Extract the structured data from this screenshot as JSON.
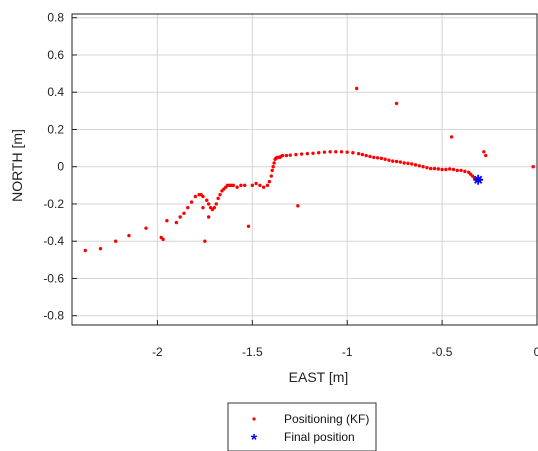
{
  "chart_data": {
    "type": "scatter",
    "xlabel": "EAST [m]",
    "ylabel": "NORTH [m]",
    "xlim": [
      -2.45,
      0.0
    ],
    "ylim": [
      -0.85,
      0.82
    ],
    "xticks": [
      -2,
      -1.5,
      -1,
      -0.5,
      0
    ],
    "xtick_labels": [
      "-2",
      "-1.5",
      "-1",
      "-0.5",
      "0"
    ],
    "yticks": [
      0.8,
      0.6,
      0.4,
      0.2,
      0,
      -0.2,
      -0.4,
      -0.6,
      -0.8
    ],
    "ytick_labels": [
      "0.8",
      "0.6",
      "0.4",
      "0.2",
      "0",
      "-0.2",
      "-0.4",
      "-0.6",
      "-0.8"
    ],
    "grid": true,
    "legend_position": "bottom-center",
    "colors": {
      "kf": "#ff0000",
      "final": "#0000ff"
    },
    "series": [
      {
        "name": "Positioning (KF)",
        "marker": "dot",
        "x": [
          -2.38,
          -2.3,
          -2.22,
          -2.15,
          -2.06,
          -1.98,
          -1.97,
          -1.9,
          -1.95,
          -1.88,
          -1.86,
          -1.84,
          -1.82,
          -1.8,
          -1.78,
          -1.77,
          -1.76,
          -1.74,
          -1.73,
          -1.72,
          -1.71,
          -1.7,
          -1.69,
          -1.68,
          -1.67,
          -1.66,
          -1.65,
          -1.64,
          -1.63,
          -1.62,
          -1.61,
          -1.6,
          -1.58,
          -1.56,
          -1.54,
          -1.5,
          -1.48,
          -1.46,
          -1.44,
          -1.42,
          -1.41,
          -1.4,
          -1.395,
          -1.39,
          -1.385,
          -1.38,
          -1.375,
          -1.37,
          -1.365,
          -1.36,
          -1.355,
          -1.35,
          -1.34,
          -1.32,
          -1.3,
          -1.27,
          -1.24,
          -1.21,
          -1.18,
          -1.15,
          -1.12,
          -1.09,
          -1.06,
          -1.03,
          -1.0,
          -0.97,
          -0.94,
          -0.92,
          -0.9,
          -0.88,
          -0.86,
          -0.84,
          -0.82,
          -0.8,
          -0.78,
          -0.76,
          -0.74,
          -0.72,
          -0.7,
          -0.68,
          -0.66,
          -0.64,
          -0.62,
          -0.6,
          -0.58,
          -0.56,
          -0.54,
          -0.52,
          -0.5,
          -0.48,
          -0.46,
          -0.44,
          -0.42,
          -0.4,
          -0.38,
          -0.36,
          -0.35,
          -0.34,
          -0.33,
          -0.32,
          -0.31,
          -0.3,
          -1.76,
          -1.73,
          -1.75,
          -1.52,
          -1.26,
          -0.95,
          -0.74,
          -0.45,
          -0.28,
          -0.27,
          -0.02
        ],
        "y": [
          -0.45,
          -0.44,
          -0.4,
          -0.37,
          -0.33,
          -0.38,
          -0.39,
          -0.3,
          -0.29,
          -0.27,
          -0.25,
          -0.22,
          -0.19,
          -0.16,
          -0.15,
          -0.15,
          -0.16,
          -0.18,
          -0.2,
          -0.22,
          -0.23,
          -0.22,
          -0.2,
          -0.17,
          -0.15,
          -0.13,
          -0.12,
          -0.11,
          -0.1,
          -0.1,
          -0.1,
          -0.1,
          -0.11,
          -0.1,
          -0.1,
          -0.1,
          -0.09,
          -0.1,
          -0.11,
          -0.1,
          -0.08,
          -0.05,
          -0.02,
          0.0,
          0.02,
          0.04,
          0.045,
          0.05,
          0.05,
          0.05,
          0.05,
          0.055,
          0.06,
          0.06,
          0.062,
          0.065,
          0.068,
          0.07,
          0.072,
          0.075,
          0.078,
          0.08,
          0.08,
          0.08,
          0.078,
          0.075,
          0.07,
          0.065,
          0.06,
          0.055,
          0.05,
          0.048,
          0.045,
          0.04,
          0.035,
          0.03,
          0.028,
          0.025,
          0.02,
          0.018,
          0.015,
          0.01,
          0.005,
          0.0,
          -0.005,
          -0.01,
          -0.01,
          -0.012,
          -0.015,
          -0.015,
          -0.012,
          -0.015,
          -0.02,
          -0.02,
          -0.025,
          -0.03,
          -0.04,
          -0.05,
          -0.06,
          -0.07,
          -0.07,
          -0.07,
          -0.22,
          -0.27,
          -0.4,
          -0.32,
          -0.21,
          0.42,
          0.34,
          0.16,
          0.08,
          0.06,
          0.0
        ]
      },
      {
        "name": "Final position",
        "marker": "star",
        "x": [
          -0.31
        ],
        "y": [
          -0.07
        ]
      }
    ]
  }
}
